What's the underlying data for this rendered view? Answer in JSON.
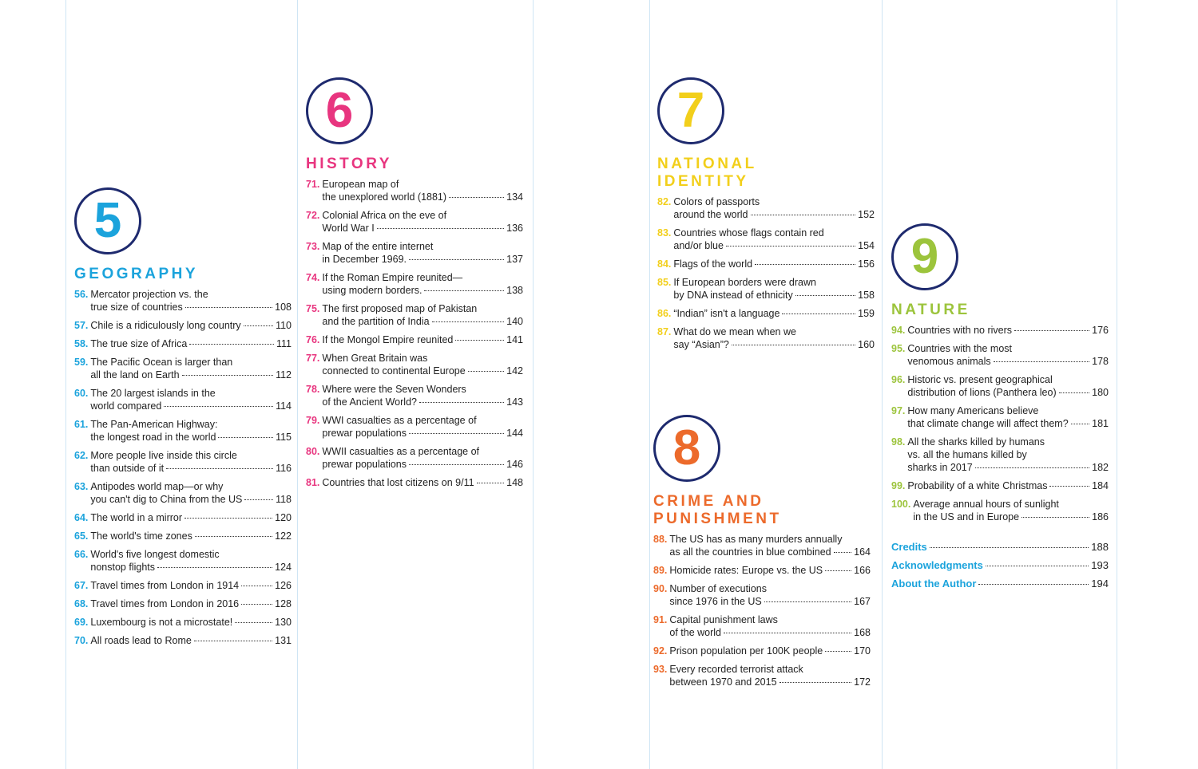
{
  "sections": [
    {
      "number": 5,
      "title": [
        "GEOGRAPHY"
      ],
      "color": "#1ba3dc",
      "entries": [
        {
          "num": "56.",
          "lines": [
            "Mercator projection vs. the",
            "true size of countries"
          ],
          "page": 108
        },
        {
          "num": "57.",
          "lines": [
            "Chile is a ridiculously long country"
          ],
          "page": 110
        },
        {
          "num": "58.",
          "lines": [
            "The true size of Africa"
          ],
          "page": 111
        },
        {
          "num": "59.",
          "lines": [
            "The Pacific Ocean is larger than",
            "all the land on Earth"
          ],
          "page": 112
        },
        {
          "num": "60.",
          "lines": [
            "The 20 largest islands in the",
            "world compared"
          ],
          "page": 114
        },
        {
          "num": "61.",
          "lines": [
            "The Pan-American Highway:",
            "the longest road in the world"
          ],
          "page": 115
        },
        {
          "num": "62.",
          "lines": [
            "More people live inside this circle",
            "than outside of it"
          ],
          "page": 116
        },
        {
          "num": "63.",
          "lines": [
            "Antipodes world map—or why",
            "you can't dig to China from the US"
          ],
          "page": 118
        },
        {
          "num": "64.",
          "lines": [
            "The world in a mirror"
          ],
          "page": 120
        },
        {
          "num": "65.",
          "lines": [
            "The world's time zones"
          ],
          "page": 122
        },
        {
          "num": "66.",
          "lines": [
            "World's five longest domestic",
            "nonstop flights"
          ],
          "page": 124
        },
        {
          "num": "67.",
          "lines": [
            "Travel times from London in 1914"
          ],
          "page": 126
        },
        {
          "num": "68.",
          "lines": [
            "Travel times from London in 2016"
          ],
          "page": 128
        },
        {
          "num": "69.",
          "lines": [
            "Luxembourg is not a microstate!"
          ],
          "page": 130
        },
        {
          "num": "70.",
          "lines": [
            "All roads lead to Rome"
          ],
          "page": 131
        }
      ]
    },
    {
      "number": 6,
      "title": [
        "HISTORY"
      ],
      "color": "#e8357f",
      "entries": [
        {
          "num": "71.",
          "lines": [
            "European map of",
            "the unexplored world (1881)"
          ],
          "page": 134
        },
        {
          "num": "72.",
          "lines": [
            "Colonial Africa on the eve of",
            "World War I"
          ],
          "page": 136
        },
        {
          "num": "73.",
          "lines": [
            "Map of the entire internet",
            "in December 1969."
          ],
          "page": 137
        },
        {
          "num": "74.",
          "lines": [
            "If the Roman Empire reunited—",
            "using modern borders."
          ],
          "page": 138
        },
        {
          "num": "75.",
          "lines": [
            "The first proposed map of Pakistan",
            "and the partition of India"
          ],
          "page": 140
        },
        {
          "num": "76.",
          "lines": [
            "If the Mongol Empire reunited"
          ],
          "page": 141
        },
        {
          "num": "77.",
          "lines": [
            "When Great Britain was",
            "connected to continental Europe"
          ],
          "page": 142
        },
        {
          "num": "78.",
          "lines": [
            "Where were the Seven Wonders",
            "of the Ancient World?"
          ],
          "page": 143
        },
        {
          "num": "79.",
          "lines": [
            "WWI casualties as a percentage of",
            "prewar populations"
          ],
          "page": 144
        },
        {
          "num": "80.",
          "lines": [
            "WWII casualties as a percentage of",
            "prewar populations"
          ],
          "page": 146
        },
        {
          "num": "81.",
          "lines": [
            "Countries that lost citizens on 9/11"
          ],
          "page": 148
        }
      ]
    },
    {
      "number": 7,
      "title": [
        "NATIONAL",
        "IDENTITY"
      ],
      "color": "#f2cf1b",
      "entries": [
        {
          "num": "82.",
          "lines": [
            "Colors of passports",
            "around the world"
          ],
          "page": 152
        },
        {
          "num": "83.",
          "lines": [
            "Countries whose flags contain red",
            "and/or blue"
          ],
          "page": 154
        },
        {
          "num": "84.",
          "lines": [
            "Flags of the world"
          ],
          "page": 156
        },
        {
          "num": "85.",
          "lines": [
            "If European borders were drawn",
            "by DNA instead of ethnicity"
          ],
          "page": 158
        },
        {
          "num": "86.",
          "lines": [
            "“Indian” isn't a language"
          ],
          "page": 159
        },
        {
          "num": "87.",
          "lines": [
            "What do we mean when we",
            "say “Asian”?"
          ],
          "page": 160
        }
      ]
    },
    {
      "number": 8,
      "title": [
        "CRIME AND",
        "PUNISHMENT"
      ],
      "color": "#ec6a2b",
      "entries": [
        {
          "num": "88.",
          "lines": [
            "The US has as many murders annually",
            "as all the countries in blue combined"
          ],
          "page": 164
        },
        {
          "num": "89.",
          "lines": [
            "Homicide rates: Europe vs. the US"
          ],
          "page": 166
        },
        {
          "num": "90.",
          "lines": [
            "Number of executions",
            "since 1976 in the US"
          ],
          "page": 167
        },
        {
          "num": "91.",
          "lines": [
            "Capital punishment laws",
            "of the world"
          ],
          "page": 168
        },
        {
          "num": "92.",
          "lines": [
            "Prison population per 100K people"
          ],
          "page": 170
        },
        {
          "num": "93.",
          "lines": [
            "Every recorded terrorist attack",
            "between 1970 and 2015"
          ],
          "page": 172
        }
      ]
    },
    {
      "number": 9,
      "title": [
        "NATURE"
      ],
      "color": "#9cc43c",
      "entries": [
        {
          "num": "94.",
          "lines": [
            "Countries with no rivers"
          ],
          "page": 176
        },
        {
          "num": "95.",
          "lines": [
            "Countries with the most",
            "venomous animals"
          ],
          "page": 178
        },
        {
          "num": "96.",
          "lines": [
            "Historic vs. present geographical",
            "distribution of lions (Panthera leo)"
          ],
          "page": 180
        },
        {
          "num": "97.",
          "lines": [
            "How many Americans believe",
            "that climate change will affect them?"
          ],
          "page": 181
        },
        {
          "num": "98.",
          "lines": [
            "All the sharks killed by humans",
            "vs. all the humans killed by",
            "sharks in 2017"
          ],
          "page": 182
        },
        {
          "num": "99.",
          "lines": [
            "Probability of a white Christmas"
          ],
          "page": 184
        },
        {
          "num": "100.",
          "lines": [
            "Average annual hours of sunlight",
            "in the US and in Europe"
          ],
          "page": 186
        }
      ]
    }
  ],
  "back_matter": [
    {
      "title": "Credits",
      "page": 188
    },
    {
      "title": "Acknowledgments",
      "page": 193
    },
    {
      "title": "About the Author",
      "page": 194
    }
  ]
}
